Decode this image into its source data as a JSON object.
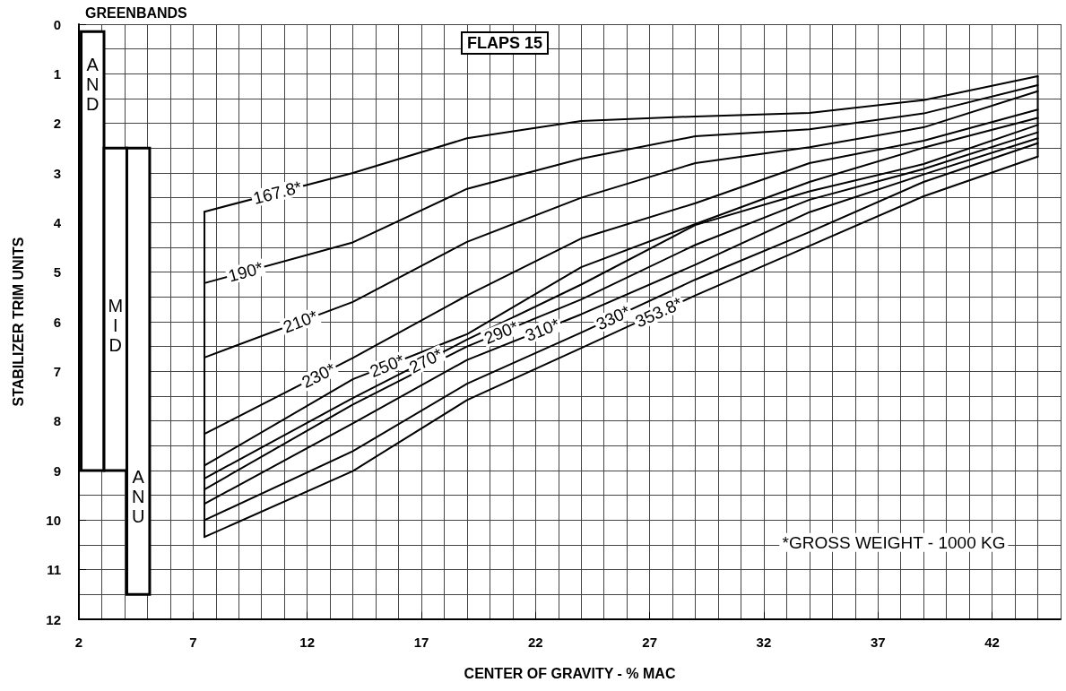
{
  "chart_data": {
    "type": "line",
    "title": "FLAPS 15",
    "xlabel": "CENTER OF GRAVITY - % MAC",
    "ylabel": "STABILIZER TRIM UNITS",
    "xlim": [
      2,
      45
    ],
    "xticks": [
      2,
      7,
      12,
      17,
      22,
      27,
      32,
      37,
      42
    ],
    "ylim": [
      12,
      0
    ],
    "yticks": [
      0,
      1,
      2,
      3,
      4,
      5,
      6,
      7,
      8,
      9,
      10,
      11,
      12
    ],
    "grid": true,
    "legend": false,
    "marker": "none",
    "line_style": "solid",
    "annotations": [
      "GREENBANDS",
      "*GROSS WEIGHT - 1000 KG"
    ],
    "series": [
      {
        "type": "bar",
        "name": "AND",
        "color": "#ffffff",
        "x": [
          2.6
        ],
        "base": [
          0.15
        ],
        "values": [
          8.85
        ]
      },
      {
        "type": "bar",
        "name": "MID",
        "color": "#ffffff",
        "x": [
          3.6
        ],
        "base": [
          2.5
        ],
        "values": [
          6.5
        ]
      },
      {
        "type": "bar",
        "name": "ANU",
        "color": "#ffffff",
        "x": [
          4.6
        ],
        "base": [
          2.5
        ],
        "values": [
          9.0
        ]
      },
      {
        "name": "167.8*",
        "color": "#000000",
        "x": [
          7.5,
          14,
          19,
          24,
          29,
          34,
          39,
          44
        ],
        "values": [
          3.78,
          3.0,
          2.3,
          1.95,
          1.86,
          1.79,
          1.53,
          1.05
        ]
      },
      {
        "name": "190*",
        "color": "#000000",
        "x": [
          7.5,
          14,
          19,
          24,
          29,
          34,
          39,
          44
        ],
        "values": [
          5.22,
          4.4,
          3.32,
          2.71,
          2.26,
          2.12,
          1.8,
          1.23
        ]
      },
      {
        "name": "210*",
        "color": "#000000",
        "x": [
          7.5,
          14,
          19,
          24,
          29,
          34,
          39,
          44
        ],
        "values": [
          6.72,
          5.6,
          4.39,
          3.5,
          2.8,
          2.48,
          2.08,
          1.35
        ]
      },
      {
        "name": "230*",
        "color": "#000000",
        "x": [
          7.5,
          14,
          19,
          24,
          29,
          34,
          39,
          44
        ],
        "values": [
          8.26,
          6.73,
          5.47,
          4.32,
          3.61,
          2.8,
          2.35,
          1.72
        ]
      },
      {
        "name": "250*",
        "color": "#000000",
        "x": [
          7.5,
          14,
          19,
          24,
          29,
          34,
          39,
          44
        ],
        "values": [
          8.9,
          7.16,
          6.25,
          4.9,
          4.03,
          3.18,
          2.49,
          1.89
        ]
      },
      {
        "name": "270*",
        "color": "#000000",
        "x": [
          7.5,
          14,
          19,
          24,
          29,
          34,
          39,
          44
        ],
        "values": [
          9.16,
          7.54,
          6.36,
          5.25,
          4.05,
          3.37,
          2.82,
          2.03
        ]
      },
      {
        "name": "290*",
        "color": "#000000",
        "x": [
          7.5,
          14,
          19,
          24,
          29,
          34,
          39,
          44
        ],
        "values": [
          9.38,
          7.67,
          6.5,
          5.55,
          4.45,
          3.54,
          2.92,
          2.18
        ]
      },
      {
        "name": "310*",
        "color": "#000000",
        "x": [
          7.5,
          14,
          19,
          24,
          29,
          34,
          39,
          44
        ],
        "values": [
          9.67,
          8.05,
          6.77,
          5.85,
          4.85,
          3.79,
          3.03,
          2.3
        ]
      },
      {
        "name": "330*",
        "color": "#000000",
        "x": [
          7.5,
          14,
          19,
          24,
          29,
          34,
          39,
          44
        ],
        "values": [
          10.0,
          8.61,
          7.25,
          6.22,
          5.15,
          4.19,
          3.18,
          2.4
        ]
      },
      {
        "name": "353.8*",
        "color": "#000000",
        "x": [
          7.5,
          14,
          19,
          24,
          29,
          34,
          39,
          44
        ],
        "values": [
          10.34,
          9.01,
          7.58,
          6.53,
          5.47,
          4.47,
          3.47,
          2.67
        ]
      },
      {
        "color": "#000000",
        "x": [
          7.5,
          7.5
        ],
        "values": [
          3.78,
          10.34
        ]
      },
      {
        "color": "#000000",
        "x": [
          44,
          44
        ],
        "values": [
          1.05,
          2.67
        ]
      }
    ]
  }
}
